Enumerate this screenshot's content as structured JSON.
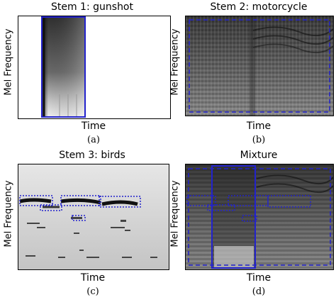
{
  "panels": [
    {
      "title": "Stem 1: gunshot",
      "ylabel": "Mel Frequency",
      "xlabel": "Time",
      "caption": "(a)"
    },
    {
      "title": "Stem 2: motorcycle",
      "ylabel": "Mel Frequency",
      "xlabel": "Time",
      "caption": "(b)"
    },
    {
      "title": "Stem 3: birds",
      "ylabel": "Mel Frequency",
      "xlabel": "Time",
      "caption": "(c)"
    },
    {
      "title": "Mixture",
      "ylabel": "Mel Frequency",
      "xlabel": "Time",
      "caption": "(d)"
    }
  ],
  "colors": {
    "annotation": "#2222cc",
    "spectrogram_dark": "#222222",
    "spectrogram_light": "#bbbbbb"
  }
}
